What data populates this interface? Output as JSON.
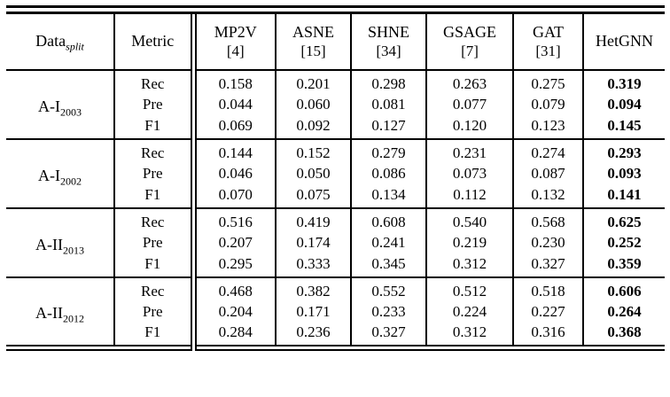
{
  "table": {
    "header": {
      "data_base": "Data",
      "data_sub": "split",
      "metric": "Metric",
      "methods": [
        {
          "name": "MP2V",
          "ref": "[4]"
        },
        {
          "name": "ASNE",
          "ref": "[15]"
        },
        {
          "name": "SHNE",
          "ref": "[34]"
        },
        {
          "name": "GSAGE",
          "ref": "[7]"
        },
        {
          "name": "GAT",
          "ref": "[31]"
        },
        {
          "name": "HetGNN",
          "ref": ""
        }
      ]
    },
    "best_method": "HetGNN",
    "groups": [
      {
        "label_base": "A-I",
        "label_sub": "2003",
        "rows": [
          {
            "metric": "Rec",
            "values": [
              "0.158",
              "0.201",
              "0.298",
              "0.263",
              "0.275",
              "0.319"
            ]
          },
          {
            "metric": "Pre",
            "values": [
              "0.044",
              "0.060",
              "0.081",
              "0.077",
              "0.079",
              "0.094"
            ]
          },
          {
            "metric": "F1",
            "values": [
              "0.069",
              "0.092",
              "0.127",
              "0.120",
              "0.123",
              "0.145"
            ]
          }
        ]
      },
      {
        "label_base": "A-I",
        "label_sub": "2002",
        "rows": [
          {
            "metric": "Rec",
            "values": [
              "0.144",
              "0.152",
              "0.279",
              "0.231",
              "0.274",
              "0.293"
            ]
          },
          {
            "metric": "Pre",
            "values": [
              "0.046",
              "0.050",
              "0.086",
              "0.073",
              "0.087",
              "0.093"
            ]
          },
          {
            "metric": "F1",
            "values": [
              "0.070",
              "0.075",
              "0.134",
              "0.112",
              "0.132",
              "0.141"
            ]
          }
        ]
      },
      {
        "label_base": "A-II",
        "label_sub": "2013",
        "rows": [
          {
            "metric": "Rec",
            "values": [
              "0.516",
              "0.419",
              "0.608",
              "0.540",
              "0.568",
              "0.625"
            ]
          },
          {
            "metric": "Pre",
            "values": [
              "0.207",
              "0.174",
              "0.241",
              "0.219",
              "0.230",
              "0.252"
            ]
          },
          {
            "metric": "F1",
            "values": [
              "0.295",
              "0.333",
              "0.345",
              "0.312",
              "0.327",
              "0.359"
            ]
          }
        ]
      },
      {
        "label_base": "A-II",
        "label_sub": "2012",
        "rows": [
          {
            "metric": "Rec",
            "values": [
              "0.468",
              "0.382",
              "0.552",
              "0.512",
              "0.518",
              "0.606"
            ]
          },
          {
            "metric": "Pre",
            "values": [
              "0.204",
              "0.171",
              "0.233",
              "0.224",
              "0.227",
              "0.264"
            ]
          },
          {
            "metric": "F1",
            "values": [
              "0.284",
              "0.236",
              "0.327",
              "0.312",
              "0.316",
              "0.368"
            ]
          }
        ]
      }
    ]
  }
}
